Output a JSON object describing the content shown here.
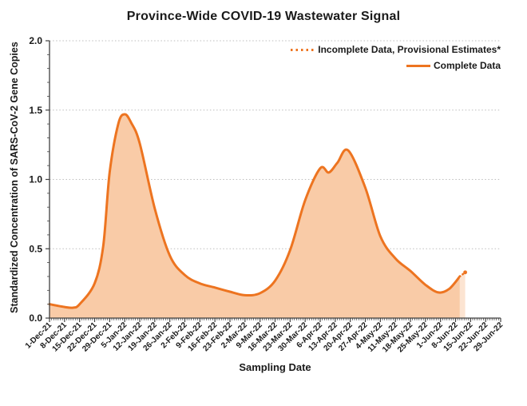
{
  "colors": {
    "accent_orange": "#ED7420",
    "area_fill": "#F9CBA7",
    "provisional_fill": "#FCE4D2",
    "gridline": "#BDBDBD",
    "axis": "#404040",
    "text": "#1A1A1A"
  },
  "chart_data": {
    "type": "area",
    "title": "Province-Wide COVID-19 Wastewater Signal",
    "xlabel": "Sampling Date",
    "ylabel": "Standardized Concentration of SARS-CoV-2 Gene Copies",
    "ylim": [
      0,
      2
    ],
    "ytick_step": 0.5,
    "yticks": [
      "0.0",
      "0.5",
      "1.0",
      "1.5",
      "2.0"
    ],
    "grid": "horizontal dotted lines at 0.5 intervals",
    "legend_position": "top-right inside plot",
    "x_tick_interval_days": 7,
    "x_total_days": 210,
    "categories": [
      "1-Dec-21",
      "8-Dec-21",
      "15-Dec-21",
      "22-Dec-21",
      "29-Dec-21",
      "5-Jan-22",
      "12-Jan-22",
      "19-Jan-22",
      "26-Jan-22",
      "2-Feb-22",
      "9-Feb-22",
      "16-Feb-22",
      "23-Feb-22",
      "2-Mar-22",
      "9-Mar-22",
      "16-Mar-22",
      "23-Mar-22",
      "30-Mar-22",
      "6-Apr-22",
      "13-Apr-22",
      "20-Apr-22",
      "27-Apr-22",
      "4-May-22",
      "11-May-22",
      "18-May-22",
      "25-May-22",
      "1-Jun-22",
      "8-Jun-22",
      "15-Jun-22",
      "22-Jun-22",
      "29-Jun-22"
    ],
    "legend": [
      {
        "label": "Incomplete Data, Provisional Estimates*",
        "style": "dotted"
      },
      {
        "label": "Complete Data",
        "style": "solid"
      }
    ],
    "series": [
      {
        "name": "Complete Data",
        "style": "solid",
        "points_day_value": [
          [
            0,
            0.1
          ],
          [
            7,
            0.08
          ],
          [
            11,
            0.075
          ],
          [
            14,
            0.1
          ],
          [
            21,
            0.25
          ],
          [
            25,
            0.52
          ],
          [
            28,
            1.05
          ],
          [
            32,
            1.4
          ],
          [
            35,
            1.47
          ],
          [
            38,
            1.41
          ],
          [
            42,
            1.26
          ],
          [
            49,
            0.79
          ],
          [
            56,
            0.45
          ],
          [
            63,
            0.31
          ],
          [
            70,
            0.25
          ],
          [
            77,
            0.22
          ],
          [
            84,
            0.19
          ],
          [
            91,
            0.165
          ],
          [
            98,
            0.18
          ],
          [
            105,
            0.27
          ],
          [
            112,
            0.49
          ],
          [
            119,
            0.85
          ],
          [
            126,
            1.08
          ],
          [
            130,
            1.05
          ],
          [
            134,
            1.12
          ],
          [
            139,
            1.21
          ],
          [
            147,
            0.94
          ],
          [
            154,
            0.59
          ],
          [
            161,
            0.43
          ],
          [
            168,
            0.34
          ],
          [
            175,
            0.24
          ],
          [
            181,
            0.185
          ],
          [
            186,
            0.21
          ],
          [
            191,
            0.3
          ]
        ]
      },
      {
        "name": "Incomplete Data, Provisional Estimates*",
        "style": "dotted",
        "points_day_value": [
          [
            191,
            0.3
          ],
          [
            193.5,
            0.33
          ]
        ]
      }
    ],
    "notable_values": {
      "wave1_peak": {
        "date": "5-Jan-22",
        "value": 1.47
      },
      "wave2_local_peak": {
        "date": "6-Apr-22",
        "value": 1.08
      },
      "wave2_peak": {
        "date": "19-Apr-22",
        "value": 1.21
      },
      "spring_trough": {
        "date": "2-Mar-22",
        "value": 0.17
      },
      "june_trough": {
        "date": "31-May-22",
        "value": 0.18
      },
      "provisional_last_point": {
        "date": "13-Jun-22",
        "value": 0.33
      }
    }
  }
}
